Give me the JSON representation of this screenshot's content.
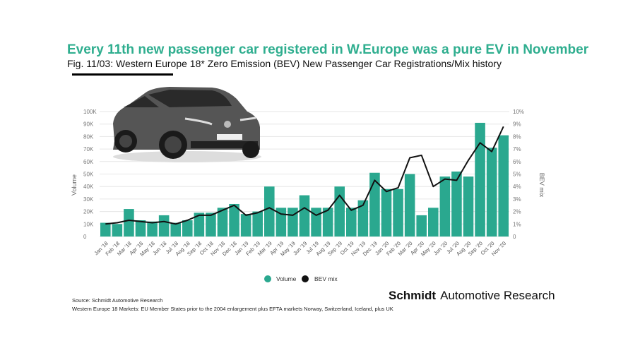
{
  "title": "Every 11th new passenger car registered in W.Europe was a pure EV in November",
  "subtitle": "Fig. 11/03: Western Europe 18* Zero Emission (BEV) New Passenger Car Registrations/Mix history",
  "source": "Source: Schmidt Automotive Research",
  "note": "Western Europe 18 Markets: EU Member States prior to the 2004 enlargement plus EFTA markets Norway, Switzerland, Iceland, plus UK",
  "brand": {
    "bold": "Schmidt",
    "rest": "Automotive Research"
  },
  "colors": {
    "title": "#2fae8f",
    "bar": "#2aa88f",
    "line": "#111111"
  },
  "chart_data": {
    "type": "bar+line",
    "categories": [
      "Jan '18",
      "Feb '18",
      "Mar '18",
      "Apr '18",
      "May '18",
      "Jun '18",
      "Jul '18",
      "Aug '18",
      "Sep '18",
      "Oct '18",
      "Nov '18",
      "Dec '18",
      "Jan '19",
      "Feb '19",
      "Mar '19",
      "Apr '19",
      "May '19",
      "Jun '19",
      "Jul '19",
      "Aug '19",
      "Sep '19",
      "Oct '19",
      "Nov '19",
      "Dec '19",
      "Jan '20",
      "Feb '20",
      "Mar '20",
      "Apr '20",
      "May '20",
      "Jun '20",
      "Jul '20",
      "Aug '20",
      "Sep '20",
      "Oct '20",
      "Nov '20"
    ],
    "series": [
      {
        "name": "Volume",
        "type": "bar",
        "axis": "left",
        "values": [
          11000,
          10000,
          22000,
          13000,
          12000,
          17000,
          11000,
          13000,
          19000,
          19000,
          23000,
          26000,
          18000,
          20000,
          40000,
          23000,
          23000,
          33000,
          23000,
          23000,
          40000,
          23000,
          29000,
          51000,
          38000,
          38000,
          50000,
          17000,
          23000,
          48000,
          52000,
          48000,
          91000,
          71000,
          81000
        ]
      },
      {
        "name": "BEV mix",
        "type": "line",
        "axis": "right",
        "values": [
          1.0,
          1.1,
          1.3,
          1.2,
          1.1,
          1.2,
          1.0,
          1.3,
          1.7,
          1.7,
          2.1,
          2.5,
          1.7,
          1.9,
          2.3,
          1.8,
          1.7,
          2.3,
          1.7,
          2.1,
          3.3,
          2.1,
          2.5,
          4.5,
          3.6,
          3.9,
          6.3,
          6.5,
          4.0,
          4.6,
          4.5,
          6.1,
          7.5,
          6.8,
          8.8
        ]
      }
    ],
    "ylabel": "Volume",
    "y2label": "BEV mix",
    "ylim": [
      0,
      100000
    ],
    "y2lim": [
      0,
      10
    ],
    "yticks": [
      "0",
      "10K",
      "20K",
      "30K",
      "40K",
      "50K",
      "60K",
      "70K",
      "80K",
      "90K",
      "100K"
    ],
    "y2ticks": [
      "0",
      "1%",
      "2%",
      "3%",
      "4%",
      "5%",
      "6%",
      "7%",
      "8%",
      "9%",
      "10%"
    ],
    "grid": true,
    "legend_position": "bottom"
  }
}
